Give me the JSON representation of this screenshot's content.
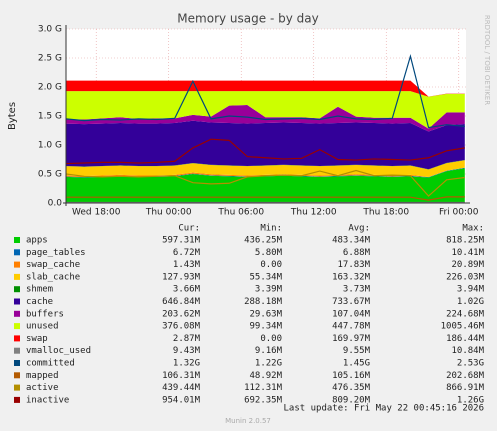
{
  "chart_data": {
    "type": "munin-area",
    "title": "Memory usage - by day",
    "y_label": "Bytes",
    "side_text": "RRDTOOL / TOBI OETIKER",
    "legend_headers": [
      "Cur:",
      "Min:",
      "Avg:",
      "Max:"
    ],
    "footer": "Last update: Fri May 22 00:45:16 2026",
    "version": "Munin 2.0.57",
    "grid": true,
    "x": [
      15.5,
      17,
      18.5,
      20,
      21.5,
      23,
      24.5,
      26,
      27.5,
      29,
      30.5,
      32,
      33.5,
      35,
      36.5,
      38,
      39.5,
      41,
      42.5,
      44,
      45.5,
      47,
      48.5
    ],
    "xlim": [
      15.5,
      48.6
    ],
    "xticks": [
      {
        "value": 18,
        "label": "Wed 18:00"
      },
      {
        "value": 24,
        "label": "Thu 00:00"
      },
      {
        "value": 30,
        "label": "Thu 06:00"
      },
      {
        "value": 36,
        "label": "Thu 12:00"
      },
      {
        "value": 42,
        "label": "Thu 18:00"
      },
      {
        "value": 48,
        "label": "Fri 00:00"
      }
    ],
    "ylim": [
      0,
      3
    ],
    "yticks": [
      {
        "value": 0,
        "label": "0.0"
      },
      {
        "value": 0.5,
        "label": "0.5 G"
      },
      {
        "value": 1,
        "label": "1.0 G"
      },
      {
        "value": 1.5,
        "label": "1.5 G"
      },
      {
        "value": 2,
        "label": "2.0 G"
      },
      {
        "value": 2.5,
        "label": "2.5 G"
      },
      {
        "value": 3,
        "label": "3.0 G"
      }
    ],
    "series": [
      {
        "name": "apps",
        "color": "#00cc00",
        "draw": "area",
        "cur": "597.31M",
        "min": "436.25M",
        "avg": "483.34M",
        "max": "818.25M",
        "values": [
          0.45,
          0.44,
          0.45,
          0.46,
          0.45,
          0.45,
          0.46,
          0.5,
          0.47,
          0.46,
          0.45,
          0.46,
          0.47,
          0.46,
          0.45,
          0.46,
          0.47,
          0.46,
          0.45,
          0.46,
          0.44,
          0.55,
          0.6
        ]
      },
      {
        "name": "page_tables",
        "color": "#0066b3",
        "draw": "area",
        "cur": "6.72M",
        "min": "5.80M",
        "avg": "6.88M",
        "max": "10.41M",
        "values": [
          0.007,
          0.007,
          0.007,
          0.007,
          0.007,
          0.007,
          0.007,
          0.007,
          0.007,
          0.007,
          0.007,
          0.007,
          0.007,
          0.007,
          0.007,
          0.007,
          0.007,
          0.007,
          0.007,
          0.007,
          0.007,
          0.007,
          0.007
        ]
      },
      {
        "name": "swap_cache",
        "color": "#ff8000",
        "draw": "area",
        "cur": "1.43M",
        "min": "0.00",
        "avg": "17.83M",
        "max": "20.89M",
        "values": [
          0.018,
          0.018,
          0.018,
          0.018,
          0.018,
          0.018,
          0.018,
          0.018,
          0.018,
          0.018,
          0.018,
          0.018,
          0.018,
          0.018,
          0.018,
          0.018,
          0.018,
          0.018,
          0.018,
          0.018,
          0.001,
          0.001,
          0.001
        ]
      },
      {
        "name": "slab_cache",
        "color": "#ffcc00",
        "draw": "area",
        "cur": "127.93M",
        "min": "55.34M",
        "avg": "163.32M",
        "max": "226.03M",
        "values": [
          0.16,
          0.16,
          0.16,
          0.16,
          0.16,
          0.16,
          0.16,
          0.16,
          0.16,
          0.16,
          0.16,
          0.16,
          0.16,
          0.16,
          0.16,
          0.16,
          0.16,
          0.16,
          0.16,
          0.16,
          0.13,
          0.13,
          0.13
        ]
      },
      {
        "name": "shmem",
        "color": "#008f00",
        "draw": "area",
        "cur": "3.66M",
        "min": "3.39M",
        "avg": "3.73M",
        "max": "3.94M",
        "values": [
          0.004,
          0.004,
          0.004,
          0.004,
          0.004,
          0.004,
          0.004,
          0.004,
          0.004,
          0.004,
          0.004,
          0.004,
          0.004,
          0.004,
          0.004,
          0.004,
          0.004,
          0.004,
          0.004,
          0.004,
          0.004,
          0.004,
          0.004
        ]
      },
      {
        "name": "cache",
        "color": "#330099",
        "draw": "area",
        "cur": "646.84M",
        "min": "288.18M",
        "avg": "733.67M",
        "max": "1.02G",
        "values": [
          0.73,
          0.73,
          0.73,
          0.73,
          0.73,
          0.73,
          0.73,
          0.73,
          0.73,
          0.73,
          0.73,
          0.73,
          0.73,
          0.73,
          0.73,
          0.73,
          0.73,
          0.73,
          0.73,
          0.73,
          0.65,
          0.65,
          0.62
        ]
      },
      {
        "name": "buffers",
        "color": "#990099",
        "draw": "area",
        "cur": "203.62M",
        "min": "29.63M",
        "avg": "107.04M",
        "max": "224.68M",
        "values": [
          0.08,
          0.08,
          0.09,
          0.1,
          0.08,
          0.09,
          0.08,
          0.1,
          0.1,
          0.3,
          0.32,
          0.1,
          0.09,
          0.1,
          0.09,
          0.28,
          0.1,
          0.09,
          0.1,
          0.09,
          0.05,
          0.22,
          0.2
        ]
      },
      {
        "name": "unused",
        "color": "#ccff00",
        "draw": "area",
        "cur": "376.08M",
        "min": "99.34M",
        "avg": "447.78M",
        "max": "1005.46M",
        "values": [
          0.48,
          0.49,
          0.47,
          0.45,
          0.48,
          0.47,
          0.47,
          0.41,
          0.44,
          0.25,
          0.24,
          0.45,
          0.45,
          0.45,
          0.47,
          0.27,
          0.44,
          0.46,
          0.46,
          0.46,
          0.55,
          0.32,
          0.32
        ]
      },
      {
        "name": "swap",
        "color": "#ff0000",
        "draw": "area",
        "cur": "2.87M",
        "min": "0.00",
        "avg": "169.97M",
        "max": "186.44M",
        "values": [
          0.18,
          0.18,
          0.18,
          0.18,
          0.18,
          0.18,
          0.18,
          0.18,
          0.18,
          0.18,
          0.18,
          0.18,
          0.18,
          0.18,
          0.18,
          0.18,
          0.18,
          0.18,
          0.18,
          0.18,
          0.003,
          0.003,
          0.003
        ]
      },
      {
        "name": "vmalloc_used",
        "color": "#808080",
        "draw": "line",
        "cur": "9.43M",
        "min": "9.16M",
        "avg": "9.55M",
        "max": "10.84M",
        "values": [
          0.0092,
          0.0092,
          0.0092,
          0.0092,
          0.0092,
          0.0092,
          0.0092,
          0.0092,
          0.0092,
          0.0092,
          0.0092,
          0.0092,
          0.0092,
          0.0092,
          0.0092,
          0.0092,
          0.0092,
          0.0092,
          0.0092,
          0.0092,
          0.0092,
          0.0092,
          0.0092
        ]
      },
      {
        "name": "committed",
        "color": "#00487d",
        "draw": "line",
        "cur": "1.32G",
        "min": "1.22G",
        "avg": "1.45G",
        "max": "2.53G",
        "values": [
          1.45,
          1.42,
          1.44,
          1.43,
          1.45,
          1.44,
          1.46,
          2.1,
          1.45,
          1.5,
          1.48,
          1.44,
          1.45,
          1.46,
          1.44,
          1.5,
          1.45,
          1.44,
          1.46,
          2.53,
          1.3,
          1.35,
          1.32
        ]
      },
      {
        "name": "mapped",
        "color": "#b35a00",
        "draw": "line",
        "cur": "106.31M",
        "min": "48.92M",
        "avg": "105.16M",
        "max": "202.68M",
        "values": [
          0.1,
          0.1,
          0.1,
          0.1,
          0.1,
          0.1,
          0.1,
          0.1,
          0.1,
          0.1,
          0.1,
          0.1,
          0.1,
          0.1,
          0.1,
          0.1,
          0.1,
          0.1,
          0.1,
          0.1,
          0.05,
          0.106,
          0.106
        ]
      },
      {
        "name": "active",
        "color": "#b38f00",
        "draw": "line",
        "cur": "439.44M",
        "min": "112.31M",
        "avg": "476.35M",
        "max": "866.91M",
        "values": [
          0.5,
          0.46,
          0.45,
          0.46,
          0.45,
          0.46,
          0.47,
          0.35,
          0.33,
          0.34,
          0.45,
          0.47,
          0.48,
          0.47,
          0.55,
          0.47,
          0.56,
          0.47,
          0.48,
          0.47,
          0.12,
          0.4,
          0.44
        ]
      },
      {
        "name": "inactive",
        "color": "#990000",
        "draw": "line",
        "cur": "954.01M",
        "min": "692.35M",
        "avg": "809.20M",
        "max": "1.26G",
        "values": [
          0.68,
          0.69,
          0.7,
          0.7,
          0.69,
          0.7,
          0.72,
          0.95,
          1.1,
          1.08,
          0.8,
          0.78,
          0.76,
          0.77,
          0.92,
          0.75,
          0.74,
          0.76,
          0.75,
          0.74,
          0.78,
          0.9,
          0.95
        ]
      }
    ]
  }
}
